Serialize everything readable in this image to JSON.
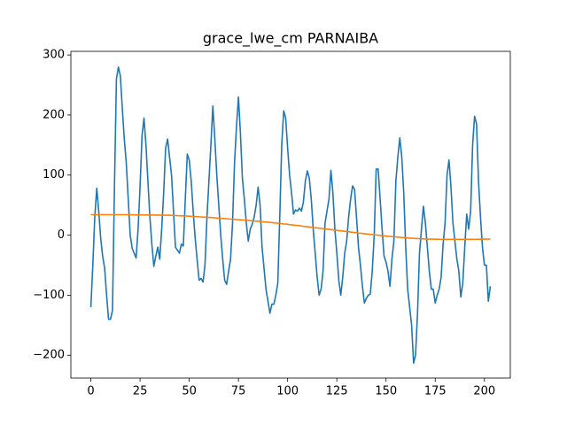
{
  "chart_data": {
    "type": "line",
    "title": "grace_lwe_cm PARNAIBA",
    "x": [
      0,
      1,
      2,
      3,
      4,
      5,
      6,
      7,
      8,
      9,
      10,
      11,
      12,
      13,
      14,
      15,
      16,
      17,
      18,
      19,
      20,
      21,
      22,
      23,
      24,
      25,
      26,
      27,
      28,
      29,
      30,
      31,
      32,
      33,
      34,
      35,
      36,
      37,
      38,
      39,
      40,
      41,
      42,
      43,
      44,
      45,
      46,
      47,
      48,
      49,
      50,
      51,
      52,
      53,
      54,
      55,
      56,
      57,
      58,
      59,
      60,
      61,
      62,
      63,
      64,
      65,
      66,
      67,
      68,
      69,
      70,
      71,
      72,
      73,
      74,
      75,
      76,
      77,
      78,
      79,
      80,
      81,
      82,
      83,
      84,
      85,
      86,
      87,
      88,
      89,
      90,
      91,
      92,
      93,
      94,
      95,
      96,
      97,
      98,
      99,
      100,
      101,
      102,
      103,
      104,
      105,
      106,
      107,
      108,
      109,
      110,
      111,
      112,
      113,
      114,
      115,
      116,
      117,
      118,
      119,
      120,
      121,
      122,
      123,
      124,
      125,
      126,
      127,
      128,
      129,
      130,
      131,
      132,
      133,
      134,
      135,
      136,
      137,
      138,
      139,
      140,
      141,
      142,
      143,
      144,
      145,
      146,
      147,
      148,
      149,
      150,
      151,
      152,
      153,
      154,
      155,
      156,
      157,
      158,
      159,
      160,
      161,
      162,
      163,
      164,
      165,
      166,
      167,
      168,
      169,
      170,
      171,
      172,
      173,
      174,
      175,
      176,
      177,
      178,
      179,
      180,
      181,
      182,
      183,
      184,
      185,
      186,
      187,
      188,
      189,
      190,
      191,
      192,
      193,
      194,
      195,
      196,
      197,
      198,
      199,
      200,
      201,
      202,
      203
    ],
    "series": [
      {
        "color": "#1f77b4",
        "values": [
          -120,
          -50,
          30,
          78,
          40,
          -5,
          -35,
          -55,
          -100,
          -140,
          -140,
          -125,
          80,
          260,
          280,
          265,
          210,
          160,
          120,
          60,
          0,
          -22,
          -30,
          -38,
          10,
          80,
          165,
          195,
          150,
          90,
          30,
          -15,
          -52,
          -35,
          -20,
          -40,
          10,
          70,
          145,
          160,
          130,
          100,
          40,
          -20,
          -25,
          -30,
          -15,
          -18,
          60,
          135,
          125,
          90,
          40,
          -5,
          -40,
          -75,
          -72,
          -78,
          -50,
          30,
          90,
          150,
          215,
          160,
          100,
          50,
          0,
          -40,
          -75,
          -82,
          -60,
          -40,
          20,
          120,
          180,
          230,
          170,
          95,
          60,
          20,
          -10,
          10,
          18,
          30,
          50,
          80,
          50,
          -20,
          -55,
          -90,
          -110,
          -130,
          -115,
          -115,
          -100,
          -80,
          30,
          150,
          207,
          195,
          145,
          100,
          70,
          35,
          42,
          40,
          45,
          40,
          55,
          90,
          107,
          95,
          60,
          10,
          -30,
          -70,
          -100,
          -90,
          -60,
          20,
          40,
          60,
          108,
          70,
          10,
          -30,
          -75,
          -100,
          -70,
          -30,
          -10,
          30,
          60,
          82,
          76,
          30,
          -20,
          -50,
          -85,
          -113,
          -105,
          -100,
          -98,
          -60,
          0,
          110,
          110,
          60,
          10,
          -35,
          -45,
          -60,
          -85,
          -40,
          -10,
          90,
          130,
          162,
          130,
          70,
          -20,
          -90,
          -120,
          -150,
          -213,
          -200,
          -130,
          -30,
          10,
          48,
          20,
          -20,
          -60,
          -90,
          -90,
          -113,
          -100,
          -90,
          -70,
          -15,
          20,
          100,
          125,
          80,
          20,
          -10,
          -40,
          -60,
          -103,
          -80,
          -20,
          35,
          10,
          40,
          150,
          198,
          185,
          90,
          30,
          -20,
          -50,
          -50,
          -110,
          -85
        ]
      },
      {
        "color": "#ff7f0e",
        "values": [
          34,
          34,
          34,
          34,
          34,
          34,
          34,
          34,
          34,
          34,
          34,
          34,
          34,
          34,
          34,
          34,
          34,
          34,
          34,
          34,
          34,
          33.9,
          33.9,
          33.8,
          33.8,
          33.7,
          33.7,
          33.6,
          33.6,
          33.5,
          33.5,
          33.5,
          33.4,
          33.4,
          33.3,
          33.3,
          33.2,
          33.2,
          33.1,
          33.1,
          33,
          32.9,
          32.7,
          32.6,
          32.4,
          32.3,
          32.1,
          32,
          31.8,
          31.7,
          31.5,
          31.3,
          31.1,
          30.9,
          30.7,
          30.5,
          30.3,
          30.1,
          29.9,
          29.7,
          29.5,
          29.3,
          29,
          28.8,
          28.5,
          28.3,
          28,
          27.8,
          27.5,
          27.3,
          27,
          26.8,
          26.5,
          26.3,
          26,
          25.8,
          25.5,
          25.3,
          25,
          24.8,
          24.5,
          24.2,
          23.9,
          23.6,
          23.3,
          23,
          22.7,
          22.4,
          22.1,
          21.8,
          21.5,
          21.2,
          20.8,
          20.5,
          20.1,
          19.8,
          19.4,
          19.1,
          18.7,
          18.4,
          18,
          17.6,
          17.2,
          16.8,
          16.4,
          16,
          15.6,
          15.2,
          14.8,
          14.4,
          14,
          13.6,
          13.2,
          12.8,
          12.4,
          12,
          11.6,
          11.2,
          10.8,
          10.4,
          10,
          9.6,
          9.2,
          8.8,
          8.4,
          8,
          7.6,
          7.2,
          6.8,
          6.4,
          6,
          5.6,
          5.2,
          4.8,
          4.4,
          4,
          3.6,
          3.2,
          2.8,
          2.4,
          2,
          1.7,
          1.3,
          1,
          0.6,
          0.3,
          -0.1,
          -0.4,
          -0.8,
          -1.1,
          -1.5,
          -1.8,
          -2.1,
          -2.4,
          -2.7,
          -3,
          -3.3,
          -3.6,
          -3.9,
          -4.2,
          -4.5,
          -4.7,
          -4.9,
          -5.1,
          -5.3,
          -5.5,
          -5.7,
          -5.9,
          -6.1,
          -6.3,
          -6.5,
          -6.6,
          -6.6,
          -6.7,
          -6.7,
          -6.8,
          -6.8,
          -6.9,
          -6.9,
          -7,
          -7,
          -7,
          -7,
          -7,
          -7,
          -7,
          -7,
          -7,
          -7,
          -7,
          -7,
          -7,
          -7,
          -7,
          -7,
          -6.9,
          -6.9,
          -6.8,
          -6.8,
          -6.7,
          -6.7,
          -6.6,
          -6.6,
          -6.5
        ]
      }
    ],
    "xlim": [
      -10.15,
      213.15
    ],
    "xticks": [
      0,
      25,
      50,
      75,
      100,
      125,
      150,
      175,
      200
    ],
    "ylim": [
      -238,
      306
    ],
    "yticks": [
      {
        "value": -200,
        "label": "−200"
      },
      {
        "value": -100,
        "label": "−100"
      },
      0,
      100,
      200,
      300
    ],
    "grid": false
  }
}
